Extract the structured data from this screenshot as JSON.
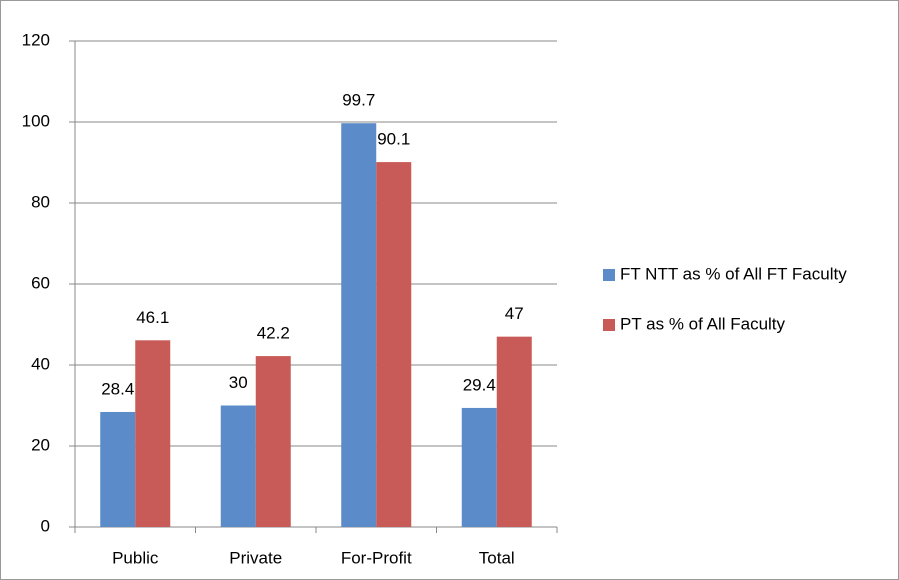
{
  "chart_data": {
    "type": "bar",
    "categories": [
      "Public",
      "Private",
      "For-Profit",
      "Total"
    ],
    "series": [
      {
        "name": "FT NTT as % of All FT Faculty",
        "color": "#5b8bc9",
        "values": [
          28.4,
          30,
          99.7,
          29.4
        ]
      },
      {
        "name": "PT as % of All Faculty",
        "color": "#c85b57",
        "values": [
          46.1,
          42.2,
          90.1,
          47
        ]
      }
    ],
    "ylim": [
      0,
      120
    ],
    "yticks": [
      0,
      20,
      40,
      60,
      80,
      100,
      120
    ],
    "grid": true,
    "legend": "right"
  }
}
